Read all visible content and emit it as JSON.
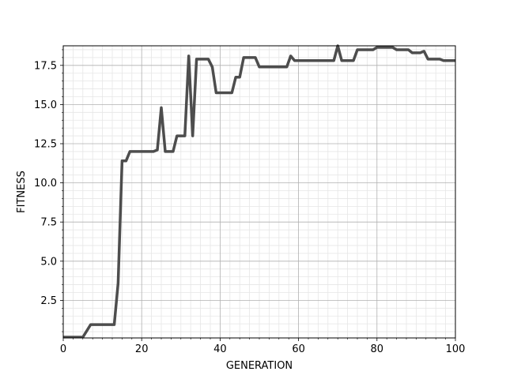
{
  "chart_data": {
    "type": "line",
    "title": "",
    "xlabel": "GENERATION",
    "ylabel": "FITNESS",
    "xlim": [
      0,
      100
    ],
    "ylim": [
      0.1,
      18.75
    ],
    "x_ticks": [
      0,
      20,
      40,
      60,
      80,
      100
    ],
    "y_ticks": [
      2.5,
      5.0,
      7.5,
      10.0,
      12.5,
      15.0,
      17.5
    ],
    "y_tick_labels": [
      "2.5",
      "5.0",
      "7.5",
      "10.0",
      "12.5",
      "15.0",
      "17.5"
    ],
    "x_minor_step": 2.5,
    "y_minor_step": 0.5,
    "grid": true,
    "series": [
      {
        "color": "#4d4d4d",
        "x": [
          0,
          5,
          7,
          13,
          14,
          15,
          16,
          17,
          23,
          24,
          25,
          26,
          28,
          29,
          31,
          32,
          33,
          34,
          37,
          38,
          39,
          43,
          44,
          45,
          46,
          49,
          50,
          57,
          58,
          59,
          69,
          70,
          71,
          74,
          75,
          79,
          80,
          84,
          85,
          88,
          89,
          91,
          92,
          93,
          96,
          97,
          100
        ],
        "y": [
          0.15,
          0.15,
          0.95,
          0.95,
          3.6,
          11.4,
          11.4,
          12.0,
          12.0,
          12.1,
          14.8,
          12.0,
          12.0,
          13.0,
          13.0,
          18.1,
          13.0,
          17.9,
          17.9,
          17.4,
          15.75,
          15.75,
          16.75,
          16.75,
          18.0,
          18.0,
          17.4,
          17.4,
          18.1,
          17.8,
          17.8,
          18.75,
          17.8,
          17.8,
          18.5,
          18.5,
          18.65,
          18.65,
          18.5,
          18.5,
          18.3,
          18.3,
          18.4,
          17.9,
          17.9,
          17.8,
          17.8
        ]
      }
    ]
  }
}
